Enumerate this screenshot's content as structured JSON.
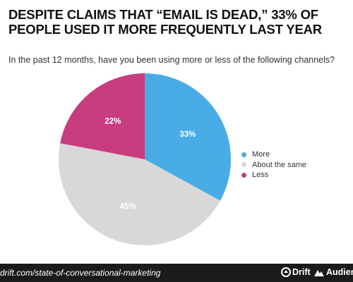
{
  "header": {
    "title": "DESPITE CLAIMS THAT “EMAIL IS DEAD,” 33% OF PEOPLE USED IT MORE FREQUENTLY LAST YEAR",
    "subtitle": "In the past 12 months, have you been using more or less of the following channels?"
  },
  "chart_data": {
    "type": "pie",
    "title": "DESPITE CLAIMS THAT “EMAIL IS DEAD,” 33% OF PEOPLE USED IT MORE FREQUENTLY LAST YEAR",
    "subtitle": "In the past 12 months, have you been using more or less of the following channels?",
    "slices": [
      {
        "label": "More",
        "value": 33,
        "display": "33%",
        "color": "#4aace6"
      },
      {
        "label": "About the same",
        "value": 45,
        "display": "45%",
        "color": "#d8d8d8"
      },
      {
        "label": "Less",
        "value": 22,
        "display": "22%",
        "color": "#c83d7f"
      }
    ],
    "legend": "right"
  },
  "footer": {
    "url": "drift.com/state-of-conversational-marketing",
    "brand1": "Drift",
    "brand2": "Audienc",
    "brand1_icon": "drift-logo-icon",
    "brand2_icon": "audience-logo-icon",
    "background": "#1b1b1b"
  }
}
